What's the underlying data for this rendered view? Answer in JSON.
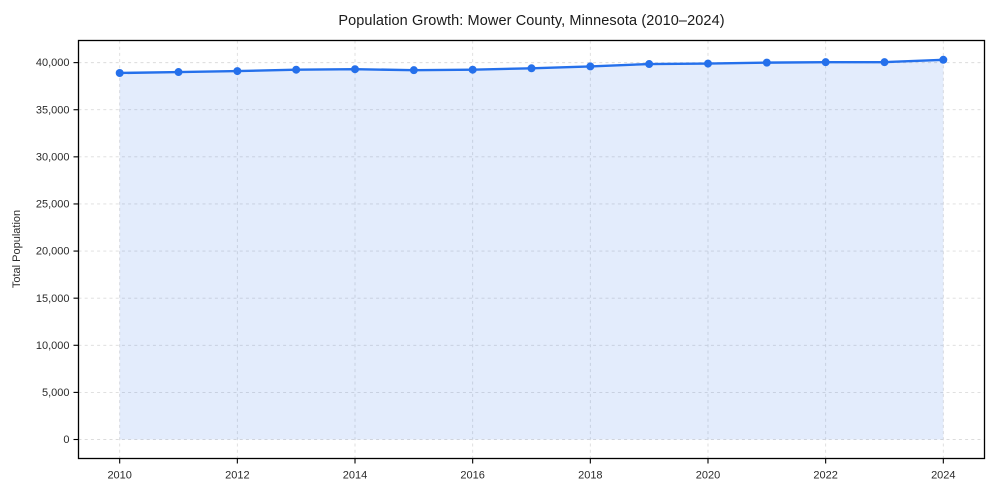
{
  "chart_data": {
    "type": "line",
    "title": "Population Growth: Mower County, Minnesota (2010–2024)",
    "xlabel": "",
    "ylabel": "Total Population",
    "x": [
      2010,
      2011,
      2012,
      2013,
      2014,
      2015,
      2016,
      2017,
      2018,
      2019,
      2020,
      2021,
      2022,
      2023,
      2024
    ],
    "values": [
      38900,
      39000,
      39100,
      39250,
      39300,
      39200,
      39250,
      39400,
      39600,
      39850,
      39900,
      40000,
      40050,
      40050,
      40300
    ],
    "xticks": [
      2010,
      2012,
      2014,
      2016,
      2018,
      2020,
      2022,
      2024
    ],
    "yticks": [
      0,
      5000,
      10000,
      15000,
      20000,
      25000,
      30000,
      35000,
      40000
    ],
    "xlim": [
      2009.3,
      2024.7
    ],
    "ylim": [
      -2016,
      42348
    ],
    "grid": true,
    "grid_style": "dashed",
    "legend": "none",
    "line_color": "#2570eb",
    "marker": "circle",
    "marker_color": "#2570eb",
    "fill_to_zero": true,
    "fill_color": "#2570eb",
    "fill_opacity": 0.13,
    "grid_color": "#dcdcdc",
    "frame_color": "#000000",
    "background_color": "#ffffff"
  }
}
